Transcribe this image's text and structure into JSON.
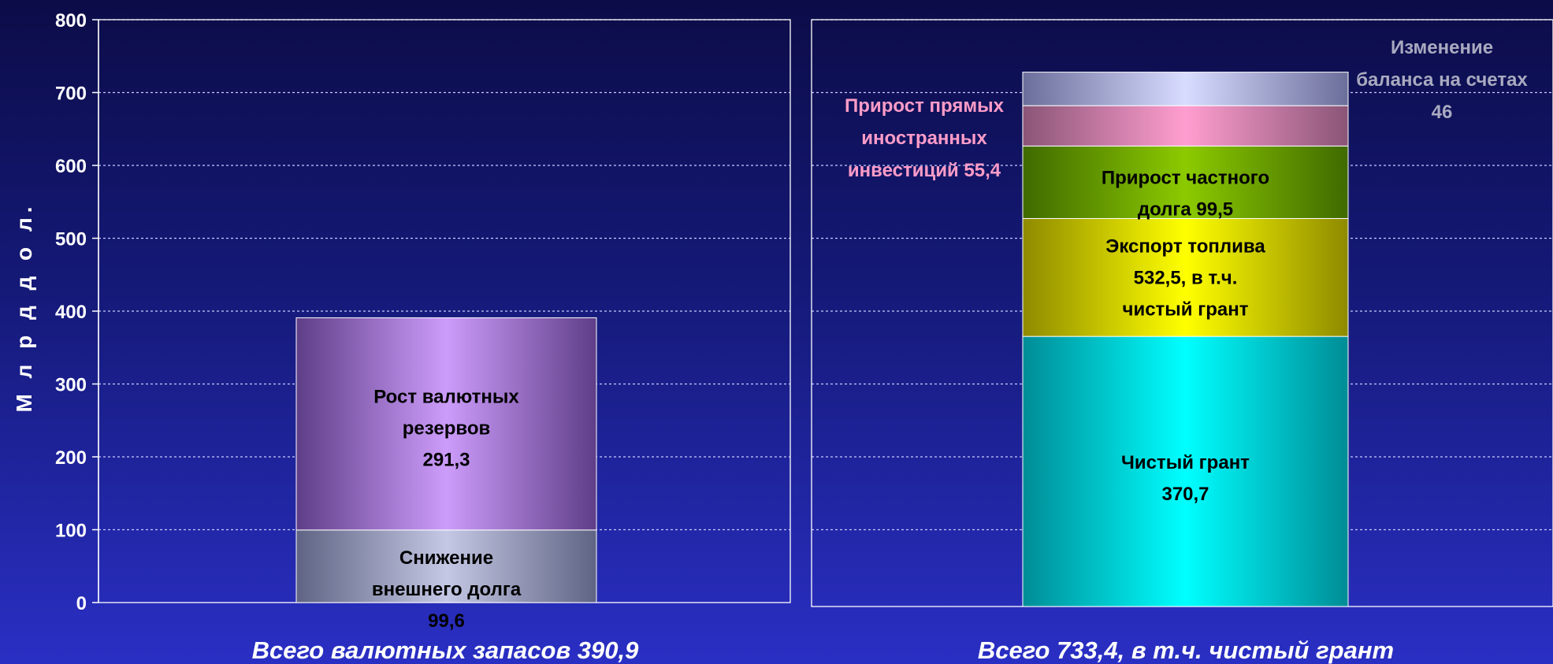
{
  "chart_data": {
    "type": "bar",
    "stacked": true,
    "ylabel": "М л р д  д о л.",
    "ylim": [
      0,
      800
    ],
    "yticks": [
      "0",
      "100",
      "200",
      "300",
      "400",
      "500",
      "600",
      "700",
      "800"
    ],
    "grid": true,
    "panels": [
      {
        "caption": "Всего валютных запасов 390,9",
        "segments": [
          {
            "label_lines": [
              "Снижение",
              "внешнего долга",
              "99,6"
            ],
            "value": 99.6,
            "color": "#9ea4c4",
            "style": "gray"
          },
          {
            "label_lines": [
              "Рост валютных",
              "резервов",
              "291,3"
            ],
            "value": 291.3,
            "color": "#c596f6",
            "style": "violet"
          }
        ]
      },
      {
        "caption": "Всего 733,4, в т.ч. чистый грант",
        "segments": [
          {
            "label_lines": [
              "Чистый грант",
              "370,7"
            ],
            "value": 370.7,
            "color": "#00ffff",
            "style": "cyan"
          },
          {
            "label_lines": [
              "Экспорт топлива",
              "532,5, в т.ч.",
              "чистый грант"
            ],
            "value": 161.8,
            "color": "#f0f000",
            "style": "yellow"
          },
          {
            "label_lines": [
              "Прирост частного",
              "долга 99,5"
            ],
            "value": 99.5,
            "color": "#7fb800",
            "style": "green"
          },
          {
            "label_lines": [],
            "value": 55.4,
            "color": "#ff9cc8",
            "style": "pink"
          },
          {
            "label_lines": [],
            "value": 46,
            "color": "#cdd0ff",
            "style": "lavender"
          }
        ],
        "side_labels": [
          {
            "lines": [
              "Прирост прямых",
              "иностранных",
              "инвестиций 55,4"
            ],
            "color": "#ff9cc8"
          },
          {
            "lines": [
              "Изменение",
              "баланса на счетах",
              "46"
            ],
            "color": "#a9aac0"
          }
        ]
      }
    ]
  }
}
